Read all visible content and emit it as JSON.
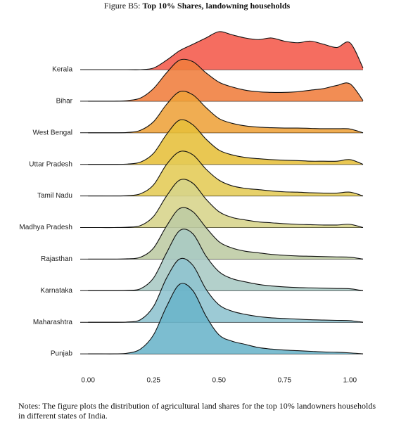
{
  "chart_data": {
    "type": "ridgeline",
    "figure_label": "Figure B5:",
    "title": "Top 10% Shares, landowning households",
    "notes": "Notes: The figure plots the distribution of agricultural land shares for the top 10% landowners households in different states of India.",
    "x": [
      0,
      0.05,
      0.1,
      0.15,
      0.2,
      0.25,
      0.3,
      0.35,
      0.4,
      0.45,
      0.5,
      0.55,
      0.6,
      0.65,
      0.7,
      0.75,
      0.8,
      0.85,
      0.9,
      0.95,
      1.0,
      1.05
    ],
    "xlim": [
      -0.03,
      1.05
    ],
    "xticks": [
      {
        "value": 0,
        "label": "0.00"
      },
      {
        "value": 0.25,
        "label": "0.25"
      },
      {
        "value": 0.5,
        "label": "0.50"
      },
      {
        "value": 0.75,
        "label": "0.75"
      },
      {
        "value": 1,
        "label": "1.00"
      }
    ],
    "series": [
      {
        "name": "Kerala",
        "color": "#f4594a",
        "values": [
          0,
          0,
          0,
          0,
          0,
          0.05,
          0.3,
          0.6,
          0.8,
          1.0,
          1.2,
          1.1,
          1.0,
          0.95,
          1.0,
          0.9,
          0.85,
          0.9,
          0.8,
          0.7,
          0.85,
          0.05
        ]
      },
      {
        "name": "Bihar",
        "color": "#f07d3c",
        "values": [
          0,
          0,
          0,
          0.02,
          0.1,
          0.4,
          0.9,
          1.3,
          1.25,
          0.9,
          0.6,
          0.45,
          0.35,
          0.3,
          0.28,
          0.28,
          0.3,
          0.35,
          0.4,
          0.5,
          0.55,
          0.02
        ]
      },
      {
        "name": "West Bengal",
        "color": "#eea23a",
        "values": [
          0,
          0,
          0,
          0.01,
          0.08,
          0.35,
          0.9,
          1.3,
          1.2,
          0.8,
          0.45,
          0.3,
          0.22,
          0.18,
          0.16,
          0.15,
          0.15,
          0.14,
          0.13,
          0.13,
          0.12,
          0
        ]
      },
      {
        "name": "Uttar Pradesh",
        "color": "#e6bf3a",
        "values": [
          0,
          0,
          0,
          0.01,
          0.07,
          0.35,
          0.95,
          1.4,
          1.25,
          0.8,
          0.45,
          0.3,
          0.22,
          0.18,
          0.15,
          0.13,
          0.12,
          0.1,
          0.1,
          0.1,
          0.15,
          0
        ]
      },
      {
        "name": "Tamil Nadu",
        "color": "#e4cb55",
        "values": [
          0,
          0,
          0,
          0.01,
          0.07,
          0.35,
          1.0,
          1.4,
          1.3,
          0.85,
          0.5,
          0.32,
          0.24,
          0.2,
          0.16,
          0.13,
          0.12,
          0.1,
          0.09,
          0.09,
          0.12,
          0
        ]
      },
      {
        "name": "Madhya Pradesh",
        "color": "#d7d48a",
        "values": [
          0,
          0,
          0,
          0.01,
          0.06,
          0.35,
          1.0,
          1.5,
          1.4,
          0.9,
          0.5,
          0.32,
          0.24,
          0.18,
          0.15,
          0.12,
          0.1,
          0.09,
          0.08,
          0.08,
          0.1,
          0
        ]
      },
      {
        "name": "Rajasthan",
        "color": "#bdcba3",
        "values": [
          0,
          0,
          0,
          0.01,
          0.06,
          0.35,
          1.05,
          1.6,
          1.5,
          1.0,
          0.55,
          0.35,
          0.25,
          0.2,
          0.15,
          0.12,
          0.1,
          0.09,
          0.08,
          0.07,
          0.06,
          0
        ]
      },
      {
        "name": "Karnataka",
        "color": "#a9c9c4",
        "values": [
          0,
          0,
          0,
          0.01,
          0.06,
          0.4,
          1.2,
          1.9,
          1.8,
          1.1,
          0.6,
          0.38,
          0.28,
          0.2,
          0.15,
          0.12,
          0.1,
          0.09,
          0.08,
          0.07,
          0.06,
          0
        ]
      },
      {
        "name": "Maharashtra",
        "color": "#8ec3cf",
        "values": [
          0,
          0,
          0,
          0.01,
          0.08,
          0.5,
          1.4,
          2.0,
          1.8,
          1.05,
          0.55,
          0.35,
          0.25,
          0.18,
          0.14,
          0.12,
          0.1,
          0.08,
          0.07,
          0.06,
          0.05,
          0
        ]
      },
      {
        "name": "Punjab",
        "color": "#6ab4ca",
        "values": [
          0,
          0,
          0,
          0.02,
          0.15,
          0.6,
          1.5,
          2.2,
          2.0,
          1.2,
          0.6,
          0.4,
          0.3,
          0.2,
          0.15,
          0.12,
          0.1,
          0.08,
          0.06,
          0.05,
          0.03,
          0
        ]
      }
    ]
  }
}
